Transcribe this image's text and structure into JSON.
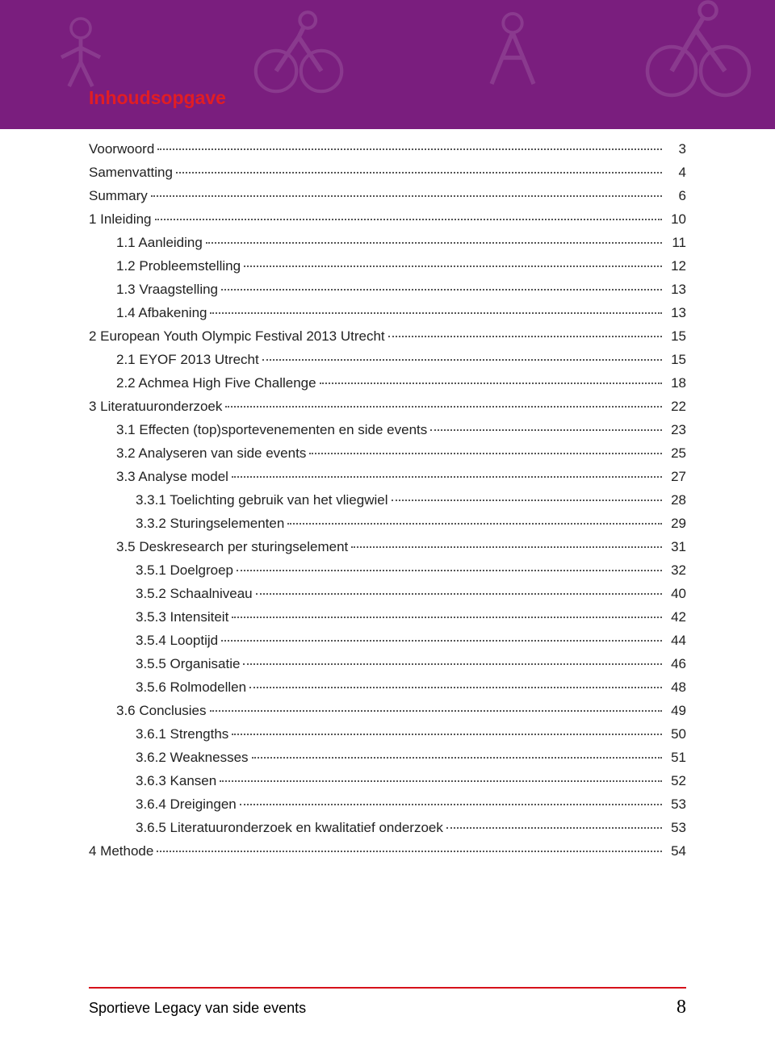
{
  "theme": {
    "header_bg": "#7a1e7e",
    "title_color": "#e11d24",
    "text_color": "#222222",
    "footer_line_color": "#d6111a",
    "icon_overlay_opacity": 0.12
  },
  "header": {
    "title": "Inhoudsopgave"
  },
  "toc": [
    {
      "label": "Voorwoord",
      "page": "3",
      "indent": 0,
      "leading_space": true
    },
    {
      "label": "Samenvatting",
      "page": "4",
      "indent": 0,
      "leading_space": true
    },
    {
      "label": "Summary",
      "page": "6",
      "indent": 0,
      "leading_space": true
    },
    {
      "label": "1 Inleiding",
      "page": "10",
      "indent": 0
    },
    {
      "gap": true
    },
    {
      "label": "1.1 Aanleiding",
      "page": "11",
      "indent": 1
    },
    {
      "label": "1.2 Probleemstelling",
      "page": "12",
      "indent": 1
    },
    {
      "label": "1.3 Vraagstelling",
      "page": "13",
      "indent": 1
    },
    {
      "label": "1.4 Afbakening",
      "page": "13",
      "indent": 1
    },
    {
      "gap": true
    },
    {
      "label": "2 European Youth Olympic Festival 2013 Utrecht",
      "page": "15",
      "indent": 0
    },
    {
      "gap": true
    },
    {
      "label": "2.1 EYOF 2013 Utrecht",
      "page": "15",
      "indent": 1
    },
    {
      "label": "2.2 Achmea High Five Challenge",
      "page": "18",
      "indent": 1
    },
    {
      "gap": true
    },
    {
      "label": "3 Literatuuronderzoek",
      "page": "22",
      "indent": 0
    },
    {
      "gap": true
    },
    {
      "label": "3.1 Effecten (top)sportevenementen en side events",
      "page": "23",
      "indent": 1
    },
    {
      "label": "3.2 Analyseren van side events",
      "page": "25",
      "indent": 1
    },
    {
      "label": "3.3 Analyse model",
      "page": "27",
      "indent": 1
    },
    {
      "gap": true
    },
    {
      "label": "3.3.1 Toelichting gebruik van het vliegwiel",
      "page": "28",
      "indent": 2
    },
    {
      "label": "3.3.2 Sturingselementen",
      "page": "29",
      "indent": 2
    },
    {
      "gap": true
    },
    {
      "label": "3.5 Deskresearch per sturingselement",
      "page": "31",
      "indent": 1
    },
    {
      "gap": true
    },
    {
      "label": "3.5.1 Doelgroep",
      "page": "32",
      "indent": 2
    },
    {
      "label": "3.5.2 Schaalniveau",
      "page": "40",
      "indent": 2
    },
    {
      "label": "3.5.3 Intensiteit",
      "page": "42",
      "indent": 2
    },
    {
      "label": "3.5.4 Looptijd",
      "page": "44",
      "indent": 2
    },
    {
      "label": "3.5.5 Organisatie",
      "page": "46",
      "indent": 2
    },
    {
      "label": "3.5.6 Rolmodellen",
      "page": "48",
      "indent": 2
    },
    {
      "gap": true
    },
    {
      "label": "3.6 Conclusies",
      "page": "49",
      "indent": 1
    },
    {
      "gap": true
    },
    {
      "label": "3.6.1 Strengths",
      "page": "50",
      "indent": 2
    },
    {
      "label": "3.6.2 Weaknesses",
      "page": "51",
      "indent": 2
    },
    {
      "label": "3.6.3 Kansen",
      "page": "52",
      "indent": 2
    },
    {
      "label": "3.6.4 Dreigingen",
      "page": "53",
      "indent": 2
    },
    {
      "label": "3.6.5 Literatuuronderzoek en kwalitatief onderzoek",
      "page": "53",
      "indent": 2
    },
    {
      "gap": true
    },
    {
      "label": "4 Methode",
      "page": "54",
      "indent": 0
    }
  ],
  "footer": {
    "text": "Sportieve Legacy van side events",
    "page_number": "8"
  }
}
